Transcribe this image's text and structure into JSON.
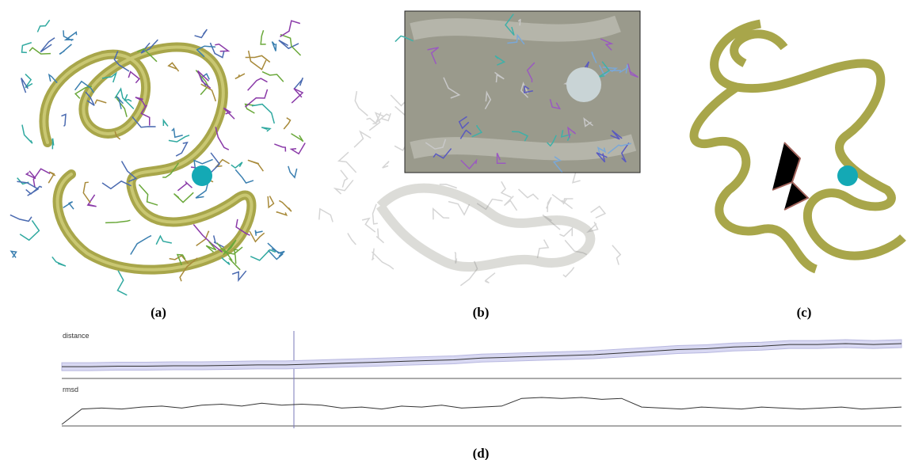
{
  "panels": [
    {
      "label": "(a)"
    },
    {
      "label": "(b)"
    },
    {
      "label": "(c)"
    },
    {
      "label": "(d)"
    }
  ],
  "plots": [
    {
      "name": "distance",
      "values": [
        12,
        12,
        12.5,
        12.5,
        13,
        13,
        13.5,
        14,
        14,
        15,
        16,
        17,
        18,
        19,
        20,
        22,
        23,
        24,
        25,
        26,
        28,
        30,
        32,
        33,
        35,
        36,
        38,
        38,
        39,
        38,
        39
      ]
    },
    {
      "name": "rmsd",
      "values": [
        0,
        16,
        17,
        16,
        18,
        19,
        17,
        20,
        21,
        19,
        22,
        20,
        21,
        20,
        17,
        18,
        16,
        19,
        18,
        20,
        17,
        18,
        19,
        27,
        28,
        27,
        28,
        26,
        27,
        18,
        17,
        16,
        18,
        17,
        16,
        18,
        17,
        16,
        17,
        18,
        16,
        17,
        18
      ]
    }
  ]
}
